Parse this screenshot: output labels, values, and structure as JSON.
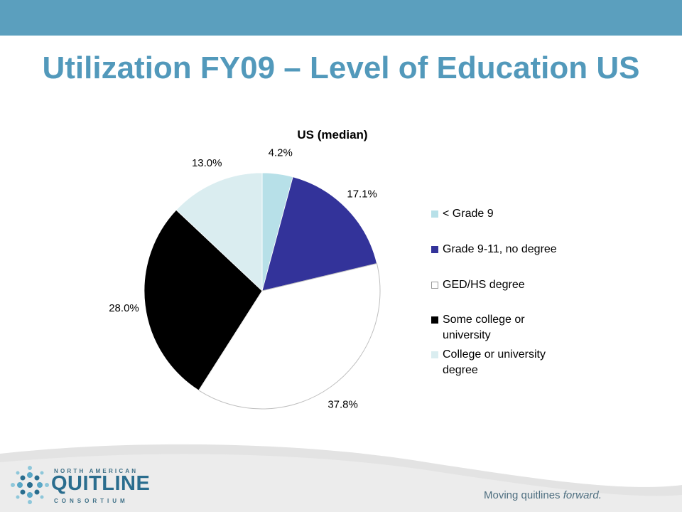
{
  "slide": {
    "title": "Utilization FY09 – Level of Education US"
  },
  "chart_data": {
    "type": "pie",
    "title": "US (median)",
    "categories": [
      "< Grade 9",
      "Grade 9-11, no degree",
      "GED/HS degree",
      "Some college or university",
      "College or university degree"
    ],
    "values": [
      4.2,
      17.1,
      37.8,
      28.0,
      13.0
    ],
    "data_labels": [
      "4.2%",
      "17.1%",
      "37.8%",
      "28.0%",
      "13.0%"
    ],
    "colors": [
      "#b7e0e8",
      "#33339a",
      "#ffffff",
      "#000000",
      "#daedf0"
    ],
    "legend_position": "right"
  },
  "legend": {
    "items": [
      "< Grade 9",
      "Grade 9-11, no degree",
      "GED/HS degree",
      "Some college or\nuniversity",
      "College or university\ndegree"
    ]
  },
  "footer": {
    "org_top": "NORTH AMERICAN",
    "org_main": "QUITLINE",
    "org_bottom": "CONSORTIUM",
    "tagline_start": "Moving quitlines ",
    "tagline_emph": "forward."
  }
}
